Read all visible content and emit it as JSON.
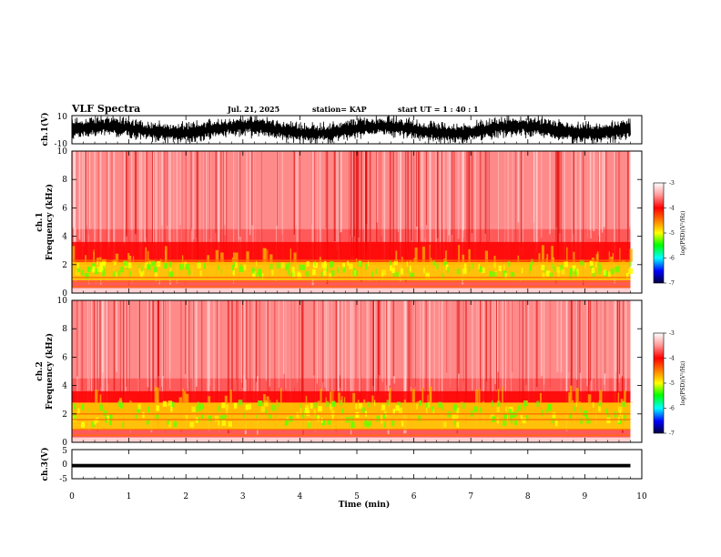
{
  "header": {
    "title": "VLF Spectra",
    "date": "Jul. 21, 2025",
    "station": "station= KAP",
    "start": "start UT =  1 : 40 : 1"
  },
  "chart_data": [
    {
      "type": "line",
      "name": "ch1-waveform",
      "ylabel": "ch.1(V)",
      "ylim": [
        -10,
        10
      ],
      "yticks": [
        "10",
        "-10"
      ],
      "x_range_min": [
        0,
        9.8
      ],
      "description_values": "dense oscillating voltage trace between about -10 and 10 V"
    },
    {
      "type": "heatmap",
      "name": "ch1-spectrogram",
      "ylabel": "ch.1 Frequency (kHz)",
      "ylim": [
        0,
        10
      ],
      "yticks": [
        "0",
        "2",
        "4",
        "6",
        "8",
        "10"
      ],
      "colorbar": {
        "label": "log(PSD)(V²/Hz)",
        "range": [
          -7,
          -3
        ],
        "ticks": [
          "-3",
          "-4",
          "-5",
          "-6",
          "-7"
        ]
      }
    },
    {
      "type": "heatmap",
      "name": "ch2-spectrogram",
      "ylabel": "ch.2 Frequency (kHz)",
      "ylim": [
        0,
        10
      ],
      "yticks": [
        "0",
        "2",
        "4",
        "6",
        "8",
        "10"
      ],
      "colorbar": {
        "label": "log(PSD)(V²/Hz)",
        "range": [
          -7,
          -3
        ],
        "ticks": [
          "-3",
          "-4",
          "-5",
          "-6",
          "-7"
        ]
      }
    },
    {
      "type": "line",
      "name": "ch3-waveform",
      "ylabel": "ch.3(V)",
      "ylim": [
        -5,
        5
      ],
      "yticks": [
        "5",
        "0",
        "-5"
      ],
      "approx_level": -0.5
    }
  ],
  "xaxis": {
    "label": "Time (min)",
    "range": [
      0,
      10
    ],
    "ticks": [
      "0",
      "1",
      "2",
      "3",
      "4",
      "5",
      "6",
      "7",
      "8",
      "9",
      "10"
    ]
  },
  "labels": {
    "ch1_v": "ch.1(V)",
    "ch1_freq_a": "ch.1",
    "ch1_freq_b": "Frequency (kHz)",
    "ch2_freq_a": "ch.2",
    "ch2_freq_b": "Frequency (kHz)",
    "ch3_v": "ch.3(V)",
    "cb_label": "log(PSD)(V²/Hz)"
  },
  "colors": {
    "hot": "#ff0000",
    "mid": "#ffff00",
    "green": "#00ff00",
    "blue": "#0000ff"
  }
}
